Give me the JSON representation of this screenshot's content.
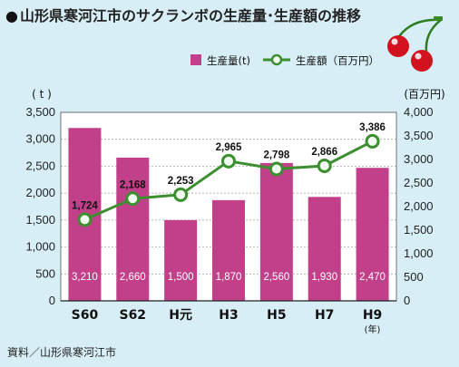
{
  "header": {
    "bullet": "●",
    "title": "山形県寒河江市のサクランボの生産量･生産額の推移"
  },
  "source": "資料／山形県寒河江市",
  "colors": {
    "background": "#d7eef6",
    "bar": "#c2408a",
    "line": "#3b8f2e",
    "marker_fill": "#f2fbf2",
    "plot_bg": "#ffffff",
    "grid": "#999999"
  },
  "icons": {
    "decoration": "cherry-icon"
  },
  "chart_data": {
    "type": "bar",
    "categories": [
      "S60",
      "S62",
      "H元",
      "H3",
      "H5",
      "H7",
      "H9"
    ],
    "x_unit": "(年)",
    "left_axis": {
      "unit": "( t )",
      "ylim": [
        0,
        3500
      ],
      "ticks": [
        "0",
        "500",
        "1,000",
        "1,500",
        "2,000",
        "2,500",
        "3,000",
        "3,500"
      ]
    },
    "right_axis": {
      "unit": "(百万円)",
      "ylim": [
        0,
        4000
      ],
      "ticks": [
        "0",
        "500",
        "1,000",
        "1,500",
        "2,000",
        "2,500",
        "3,000",
        "3,500",
        "4,000"
      ]
    },
    "grid": true,
    "legend_position": "top",
    "series": [
      {
        "name": "生産量(t)",
        "type": "bar",
        "axis": "left",
        "values": [
          3210,
          2660,
          1500,
          1870,
          2560,
          1930,
          2470
        ],
        "labels": [
          "3,210",
          "2,660",
          "1,500",
          "1,870",
          "2,560",
          "1,930",
          "2,470"
        ]
      },
      {
        "name": "生産額（百万円）",
        "type": "line",
        "axis": "right",
        "values": [
          1724,
          2168,
          2253,
          2965,
          2798,
          2866,
          3386
        ],
        "labels": [
          "1,724",
          "2,168",
          "2,253",
          "2,965",
          "2,798",
          "2,866",
          "3,386"
        ]
      }
    ]
  }
}
